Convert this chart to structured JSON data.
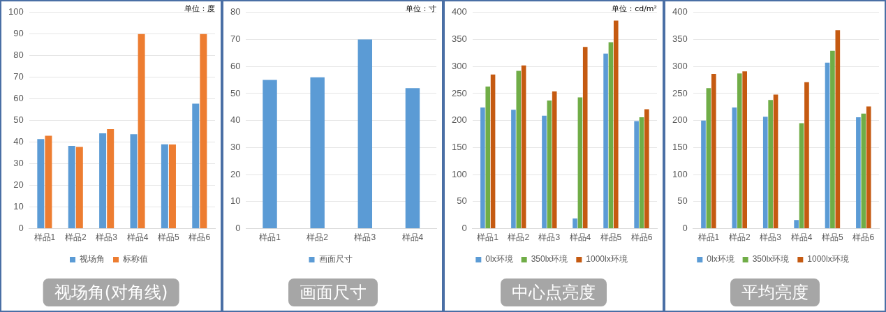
{
  "chart_data": [
    {
      "type": "bar",
      "title": "视场角(对角线)",
      "annotations": [
        "单位：度"
      ],
      "categories": [
        "样品1",
        "样品2",
        "样品3",
        "样品4",
        "样品5",
        "样品6"
      ],
      "series": [
        {
          "name": "视场角",
          "color": "#5b9bd5",
          "values": [
            41.4,
            38.3,
            44.1,
            43.7,
            39,
            57.8
          ]
        },
        {
          "name": "标称值",
          "color": "#ed7d31",
          "values": [
            43,
            37.8,
            46,
            90,
            38.9,
            90
          ]
        }
      ],
      "ylim": [
        0,
        100
      ],
      "yticks": [
        0,
        10,
        20,
        30,
        40,
        50,
        60,
        70,
        80,
        90,
        100
      ],
      "grid": "y",
      "legend": "bottom"
    },
    {
      "type": "bar",
      "title": "画面尺寸",
      "annotations": [
        "单位：寸"
      ],
      "categories": [
        "样品1",
        "样品2",
        "样品3",
        "样品4"
      ],
      "series": [
        {
          "name": "画面尺寸",
          "color": "#5b9bd5",
          "values": [
            55,
            56,
            70,
            52
          ]
        }
      ],
      "ylim": [
        0,
        80
      ],
      "yticks": [
        0,
        10,
        20,
        30,
        40,
        50,
        60,
        70,
        80
      ],
      "grid": "y",
      "legend": "bottom"
    },
    {
      "type": "bar",
      "title": "中心点亮度",
      "annotations": [
        "单位：cd/m²"
      ],
      "categories": [
        "样品1",
        "样品2",
        "样品3",
        "样品4",
        "样品5",
        "样品6"
      ],
      "series": [
        {
          "name": "0lx环境",
          "color": "#5b9bd5",
          "values": [
            224,
            220,
            209,
            19,
            324,
            199
          ]
        },
        {
          "name": "350lx环境",
          "color": "#70ad47",
          "values": [
            263,
            292,
            237,
            243,
            345,
            206
          ]
        },
        {
          "name": "1000lx环境",
          "color": "#c55a11",
          "values": [
            285,
            302,
            254,
            336,
            385,
            221
          ]
        }
      ],
      "ylim": [
        0,
        400
      ],
      "yticks": [
        0,
        50,
        100,
        150,
        200,
        250,
        300,
        350,
        400
      ],
      "grid": "y",
      "legend": "bottom"
    },
    {
      "type": "bar",
      "title": "平均亮度",
      "categories": [
        "样品1",
        "样品2",
        "样品3",
        "样品4",
        "样品5",
        "样品6"
      ],
      "series": [
        {
          "name": "0lx环境",
          "color": "#5b9bd5",
          "values": [
            200,
            224,
            207,
            16,
            307,
            206
          ]
        },
        {
          "name": "350lx环境",
          "color": "#70ad47",
          "values": [
            260,
            287,
            238,
            195,
            329,
            213
          ]
        },
        {
          "name": "1000lx环境",
          "color": "#c55a11",
          "values": [
            286,
            291,
            248,
            271,
            367,
            226
          ]
        }
      ],
      "ylim": [
        0,
        400
      ],
      "yticks": [
        0,
        50,
        100,
        150,
        200,
        250,
        300,
        350,
        400
      ],
      "grid": "y",
      "legend": "bottom"
    }
  ]
}
